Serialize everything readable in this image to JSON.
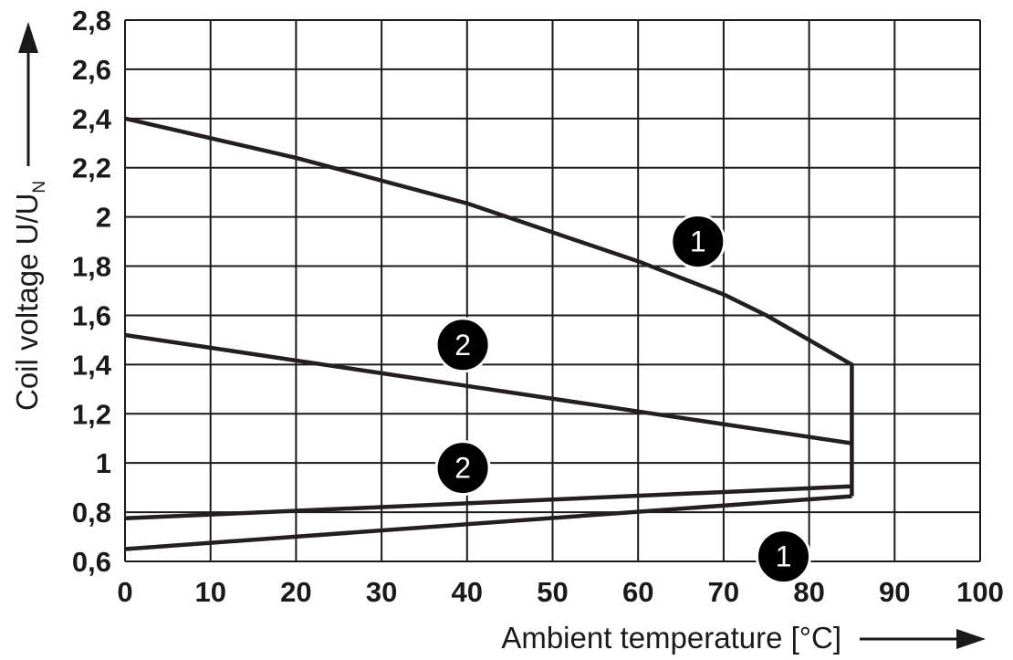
{
  "chart_data": {
    "type": "line",
    "title": "",
    "xlabel": "Ambient temperature [°C]",
    "ylabel": "Coil voltage U/U",
    "ylabel_subscript": "N",
    "xlim": [
      0,
      100
    ],
    "ylim": [
      0.6,
      2.8
    ],
    "x_ticks": [
      0,
      10,
      20,
      30,
      40,
      50,
      60,
      70,
      80,
      90,
      100
    ],
    "x_tick_labels": [
      "0",
      "10",
      "20",
      "30",
      "40",
      "50",
      "60",
      "70",
      "80",
      "90",
      "100"
    ],
    "y_ticks": [
      0.6,
      0.8,
      1.0,
      1.2,
      1.4,
      1.6,
      1.8,
      2.0,
      2.2,
      2.4,
      2.6,
      2.8
    ],
    "y_tick_labels": [
      "0,6",
      "0,8",
      "1",
      "1,2",
      "1,4",
      "1,6",
      "1,8",
      "2",
      "2,2",
      "2,4",
      "2,6",
      "2,8"
    ],
    "grid": true,
    "series": [
      {
        "id": "curve-1-upper",
        "label": "1",
        "points": [
          [
            0,
            2.4
          ],
          [
            20,
            2.24
          ],
          [
            40,
            2.055
          ],
          [
            60,
            1.82
          ],
          [
            70,
            1.685
          ],
          [
            75,
            1.6
          ],
          [
            85,
            1.4
          ],
          [
            85,
            0.865
          ]
        ]
      },
      {
        "id": "curve-1-lower",
        "label": "1",
        "points": [
          [
            0,
            0.65
          ],
          [
            85,
            0.865
          ]
        ]
      },
      {
        "id": "curve-2-upper",
        "label": "2",
        "points": [
          [
            0,
            1.52
          ],
          [
            85,
            1.08
          ]
        ]
      },
      {
        "id": "curve-2-lower",
        "label": "2",
        "points": [
          [
            0,
            0.775
          ],
          [
            85,
            0.905
          ]
        ]
      }
    ],
    "annotations": [
      {
        "text": "1",
        "x": 67,
        "y": 1.9
      },
      {
        "text": "2",
        "x": 39.5,
        "y": 1.48
      },
      {
        "text": "2",
        "x": 39.5,
        "y": 0.98
      },
      {
        "text": "1",
        "x": 77,
        "y": 0.62
      }
    ],
    "line_color": "#231f20",
    "marker_color": "#000000"
  }
}
